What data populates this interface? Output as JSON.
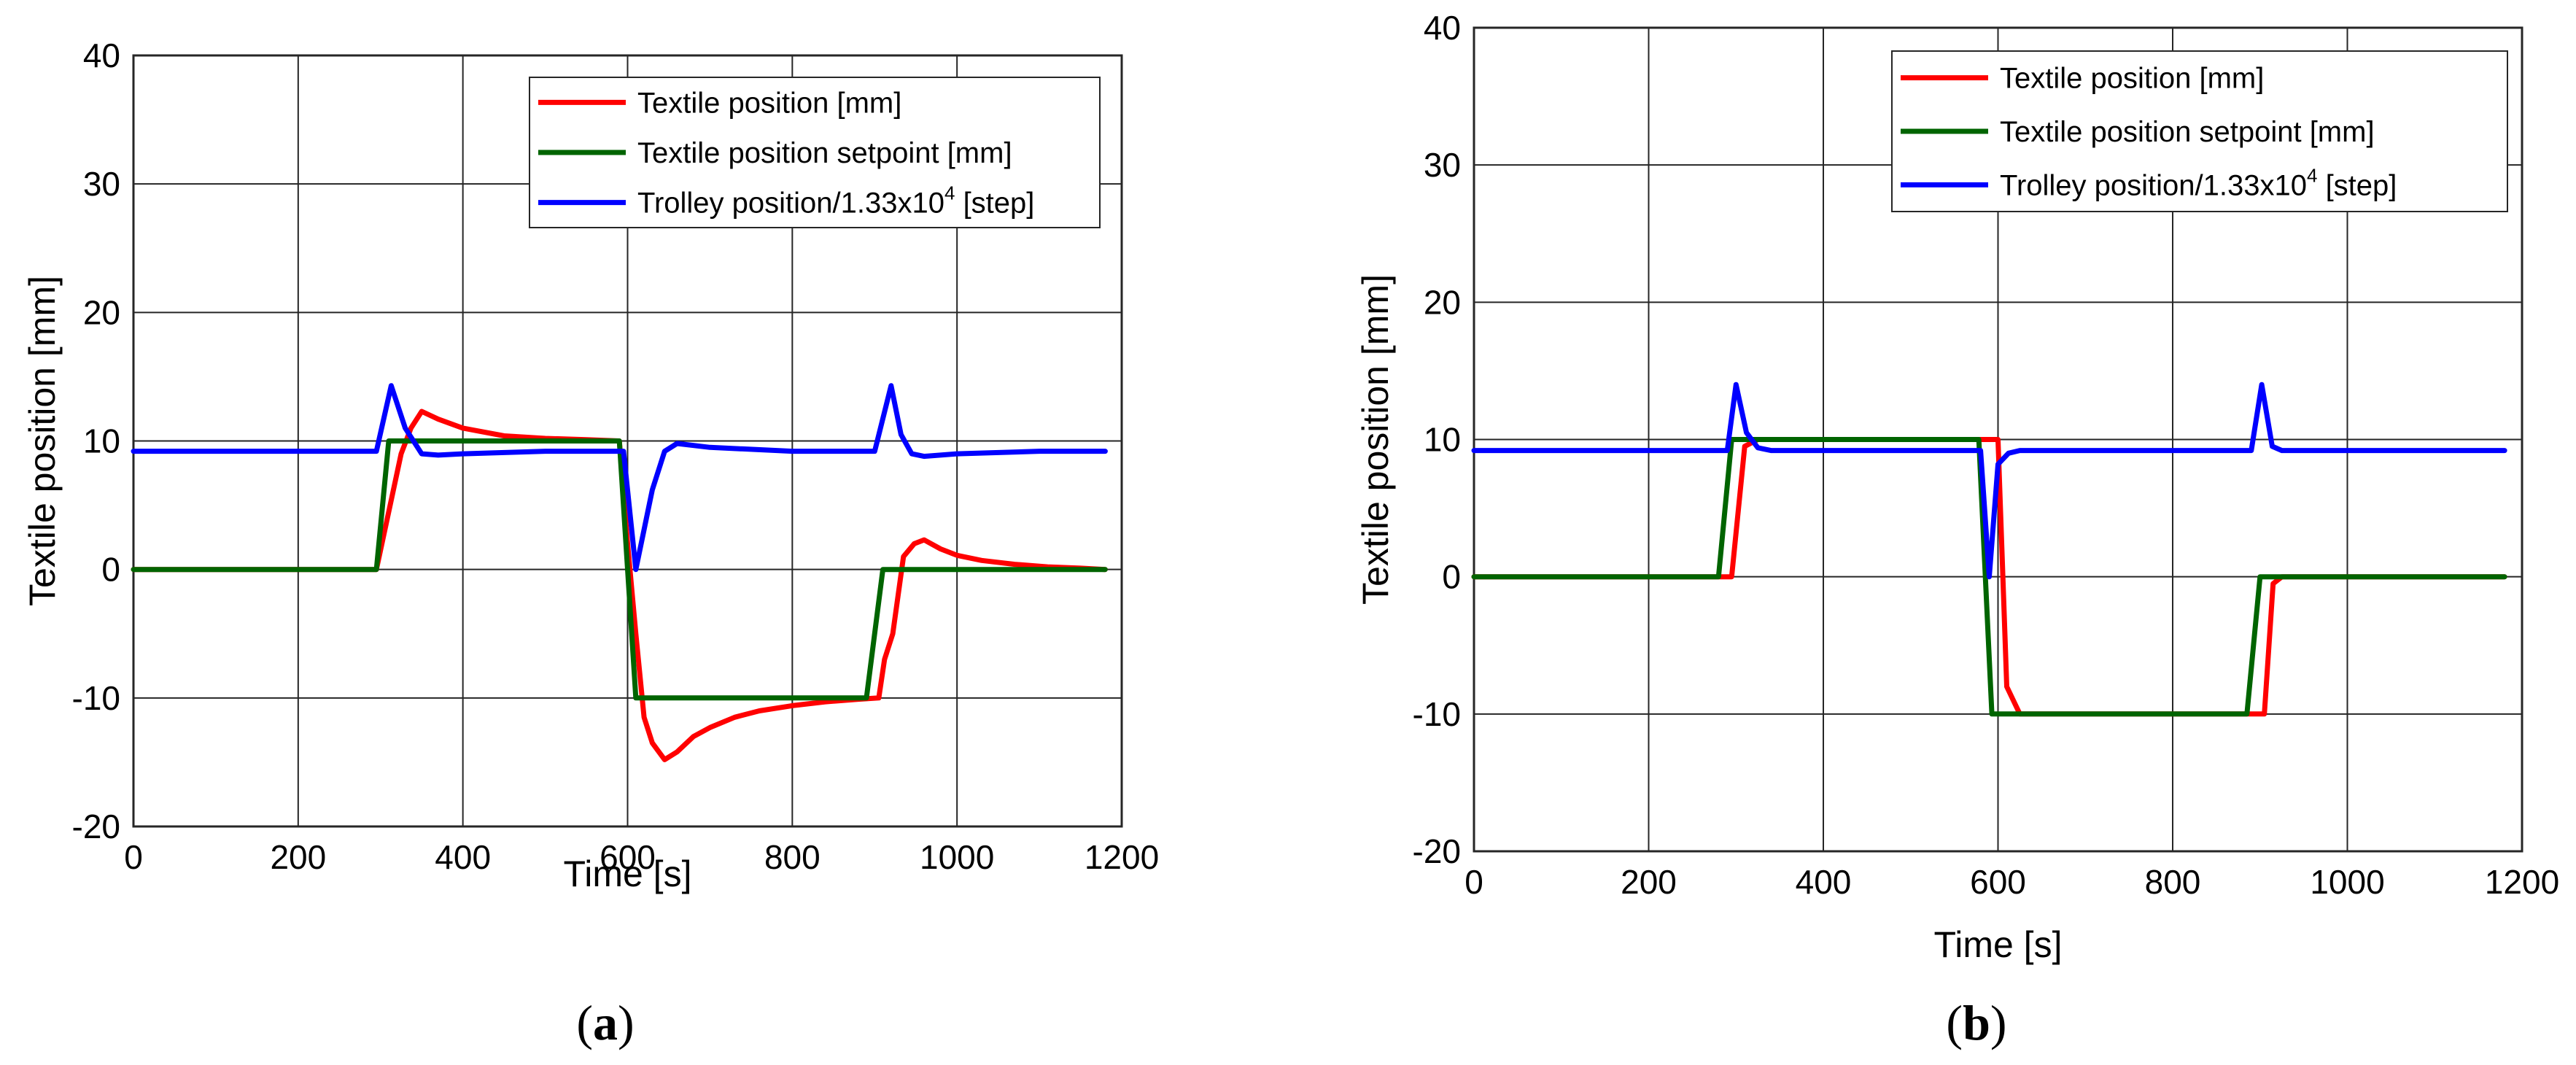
{
  "colors": {
    "textile": "#ff0000",
    "setpoint": "#006400",
    "trolley": "#0000ff",
    "grid": "#262626",
    "background": "#ffffff"
  },
  "chart_data": [
    {
      "type": "line",
      "panel": "(a)",
      "panel_letter": "a",
      "xlabel": "Time [s]",
      "ylabel": "Textile position [mm]",
      "xlim": [
        0,
        1200
      ],
      "ylim": [
        -20,
        40
      ],
      "xticks": [
        "0",
        "200",
        "400",
        "600",
        "800",
        "1000",
        "1200"
      ],
      "yticks": [
        "-20",
        "-10",
        "0",
        "10",
        "20",
        "30",
        "40"
      ],
      "grid": true,
      "legend_position": "top-right",
      "series": [
        {
          "name": "Textile position [mm]",
          "color_key": "textile",
          "x": [
            0,
            295,
            305,
            315,
            325,
            337,
            350,
            370,
            400,
            450,
            500,
            550,
            590,
            600,
            610,
            620,
            630,
            645,
            660,
            680,
            700,
            730,
            760,
            800,
            840,
            880,
            905,
            912,
            922,
            935,
            948,
            960,
            980,
            1000,
            1030,
            1070,
            1110,
            1150,
            1180
          ],
          "y": [
            0,
            0,
            3,
            6,
            9,
            11,
            12.3,
            11.7,
            11,
            10.4,
            10.2,
            10.1,
            10,
            2,
            -5,
            -11.5,
            -13.5,
            -14.8,
            -14.2,
            -13,
            -12.3,
            -11.5,
            -11,
            -10.6,
            -10.3,
            -10.1,
            -10,
            -7,
            -5,
            1,
            2,
            2.3,
            1.6,
            1.1,
            0.7,
            0.4,
            0.2,
            0.1,
            0
          ]
        },
        {
          "name": "Textile position setpoint [mm]",
          "color_key": "setpoint",
          "x": [
            0,
            295,
            310,
            590,
            610,
            890,
            910,
            1180
          ],
          "y": [
            0,
            0,
            10,
            10,
            -10,
            -10,
            0,
            0
          ]
        },
        {
          "name": "Trolley position/1.33x10^4 [step]",
          "name_main": "Trolley position/1.33x10",
          "name_sup": "4",
          "name_tail": " [step]",
          "color_key": "trolley",
          "x": [
            0,
            295,
            313,
            330,
            350,
            370,
            400,
            500,
            595,
            610,
            630,
            645,
            660,
            700,
            800,
            900,
            920,
            932,
            945,
            960,
            1000,
            1100,
            1180
          ],
          "y": [
            9.2,
            9.2,
            14.3,
            11,
            9,
            8.9,
            9,
            9.2,
            9.2,
            0,
            6.2,
            9.2,
            9.8,
            9.5,
            9.2,
            9.2,
            14.3,
            10.5,
            9,
            8.8,
            9,
            9.2,
            9.2
          ]
        }
      ]
    },
    {
      "type": "line",
      "panel": "(b)",
      "panel_letter": "b",
      "xlabel": "Time [s]",
      "ylabel": "Textile position [mm]",
      "xlim": [
        0,
        1200
      ],
      "ylim": [
        -20,
        40
      ],
      "xticks": [
        "0",
        "200",
        "400",
        "600",
        "800",
        "1000",
        "1200"
      ],
      "yticks": [
        "-20",
        "-10",
        "0",
        "10",
        "20",
        "30",
        "40"
      ],
      "grid": true,
      "legend_position": "top-right",
      "series": [
        {
          "name": "Textile position [mm]",
          "color_key": "textile",
          "x": [
            0,
            295,
            310,
            325,
            590,
            600,
            610,
            625,
            895,
            905,
            915,
            925,
            1180
          ],
          "y": [
            0,
            0,
            9.5,
            10,
            10,
            10,
            -8,
            -10,
            -10,
            -10,
            -0.5,
            0,
            0
          ]
        },
        {
          "name": "Textile position setpoint [mm]",
          "color_key": "setpoint",
          "x": [
            0,
            280,
            295,
            578,
            593,
            885,
            900,
            1180
          ],
          "y": [
            0,
            0,
            10,
            10,
            -10,
            -10,
            0,
            0
          ]
        },
        {
          "name": "Trolley position/1.33x10^4 [step]",
          "name_main": "Trolley position/1.33x10",
          "name_sup": "4",
          "name_tail": " [step]",
          "color_key": "trolley",
          "x": [
            0,
            290,
            300,
            312,
            325,
            340,
            400,
            580,
            590,
            600,
            612,
            625,
            700,
            800,
            890,
            902,
            914,
            925,
            1000,
            1100,
            1180
          ],
          "y": [
            9.2,
            9.2,
            14,
            10.5,
            9.4,
            9.2,
            9.2,
            9.2,
            0,
            8.2,
            9,
            9.2,
            9.2,
            9.2,
            9.2,
            14,
            9.5,
            9.2,
            9.2,
            9.2,
            9.2
          ]
        }
      ]
    }
  ]
}
